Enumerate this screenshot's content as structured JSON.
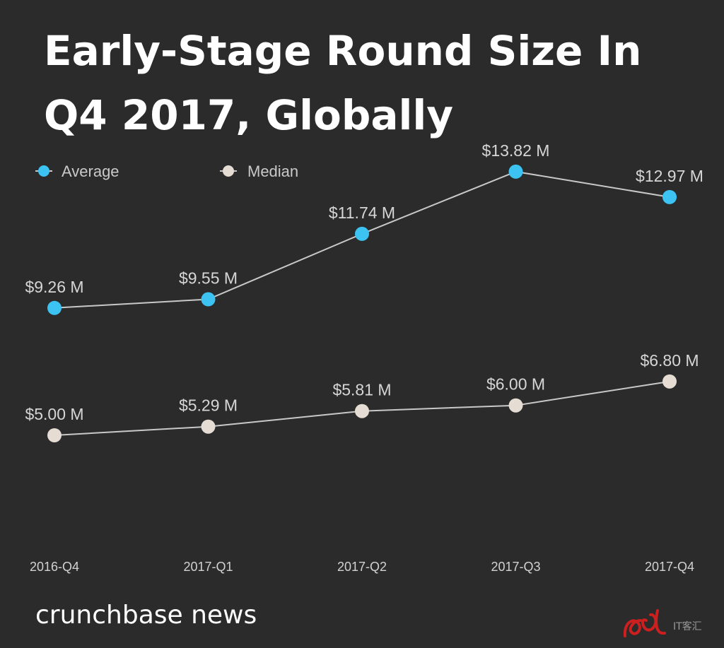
{
  "chart_data": {
    "type": "line",
    "title_lines": [
      "Early-Stage Round Size In",
      "Q4 2017, Globally"
    ],
    "categories": [
      "2016-Q4",
      "2017-Q1",
      "2017-Q2",
      "2017-Q3",
      "2017-Q4"
    ],
    "series": [
      {
        "name": "Average",
        "values": [
          9.26,
          9.55,
          11.74,
          13.82,
          12.97
        ],
        "labels": [
          "$9.26 M",
          "$9.55 M",
          "$11.74 M",
          "$13.82 M",
          "$12.97 M"
        ],
        "color": "#3cc3f2"
      },
      {
        "name": "Median",
        "values": [
          5.0,
          5.29,
          5.81,
          6.0,
          6.8
        ],
        "labels": [
          "$5.00 M",
          "$5.29 M",
          "$5.81 M",
          "$6.00 M",
          "$6.80 M"
        ],
        "color": "#e5ddd4"
      }
    ],
    "line_color": "#c8c8c8",
    "legend_position": "top-left",
    "grid": false,
    "y_axis_visible": false,
    "ylim": [
      0,
      15
    ]
  },
  "footer": {
    "brand": "crunchbase news",
    "watermark_text": "IT客汇"
  },
  "colors": {
    "background": "#2b2b2b",
    "watermark": "#cc1f1f"
  }
}
